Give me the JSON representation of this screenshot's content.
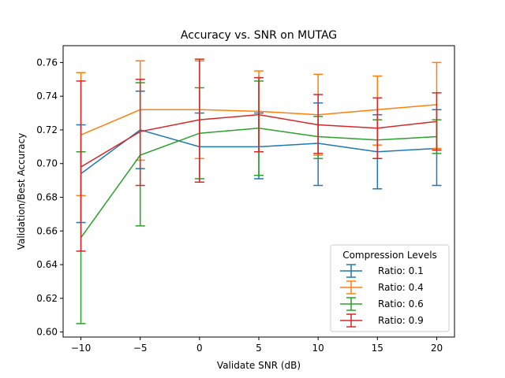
{
  "chart_data": {
    "type": "line",
    "title": "Accuracy vs. SNR on MUTAG",
    "xlabel": "Validate SNR (dB)",
    "ylabel": "Validation/Best Accuracy",
    "x": [
      -10,
      -5,
      0,
      5,
      10,
      15,
      20
    ],
    "xlim": [
      -11.5,
      21.5
    ],
    "ylim": [
      0.597,
      0.77
    ],
    "xticks": [
      -10,
      -5,
      0,
      5,
      10,
      15,
      20
    ],
    "xtick_labels": [
      "−10",
      "−5",
      "0",
      "5",
      "10",
      "15",
      "20"
    ],
    "yticks": [
      0.6,
      0.62,
      0.64,
      0.66,
      0.68,
      0.7,
      0.72,
      0.74,
      0.76
    ],
    "ytick_labels": [
      "0.60",
      "0.62",
      "0.64",
      "0.66",
      "0.68",
      "0.70",
      "0.72",
      "0.74",
      "0.76"
    ],
    "grid": false,
    "legend": {
      "title": "Compression Levels",
      "placement": "lower-right"
    },
    "series": [
      {
        "name": "Ratio: 0.1",
        "color": "#1f77b4",
        "values": [
          0.694,
          0.72,
          0.71,
          0.71,
          0.712,
          0.707,
          0.709
        ],
        "err_low": [
          0.665,
          0.697,
          0.689,
          0.691,
          0.687,
          0.685,
          0.687
        ],
        "err_high": [
          0.723,
          0.743,
          0.73,
          0.73,
          0.736,
          0.729,
          0.732
        ]
      },
      {
        "name": "Ratio: 0.4",
        "color": "#ff7f0e",
        "values": [
          0.717,
          0.732,
          0.732,
          0.731,
          0.729,
          0.732,
          0.735
        ],
        "err_low": [
          0.681,
          0.702,
          0.703,
          0.707,
          0.705,
          0.711,
          0.709
        ],
        "err_high": [
          0.754,
          0.761,
          0.761,
          0.755,
          0.753,
          0.752,
          0.76
        ]
      },
      {
        "name": "Ratio: 0.6",
        "color": "#2ca02c",
        "values": [
          0.656,
          0.705,
          0.718,
          0.721,
          0.716,
          0.714,
          0.716
        ],
        "err_low": [
          0.605,
          0.663,
          0.691,
          0.693,
          0.703,
          0.703,
          0.706
        ],
        "err_high": [
          0.707,
          0.748,
          0.745,
          0.749,
          0.728,
          0.726,
          0.726
        ]
      },
      {
        "name": "Ratio: 0.9",
        "color": "#d62728",
        "values": [
          0.698,
          0.719,
          0.726,
          0.729,
          0.723,
          0.721,
          0.725
        ],
        "err_low": [
          0.648,
          0.687,
          0.689,
          0.707,
          0.706,
          0.703,
          0.708
        ],
        "err_high": [
          0.749,
          0.75,
          0.762,
          0.751,
          0.741,
          0.739,
          0.742
        ]
      }
    ]
  }
}
